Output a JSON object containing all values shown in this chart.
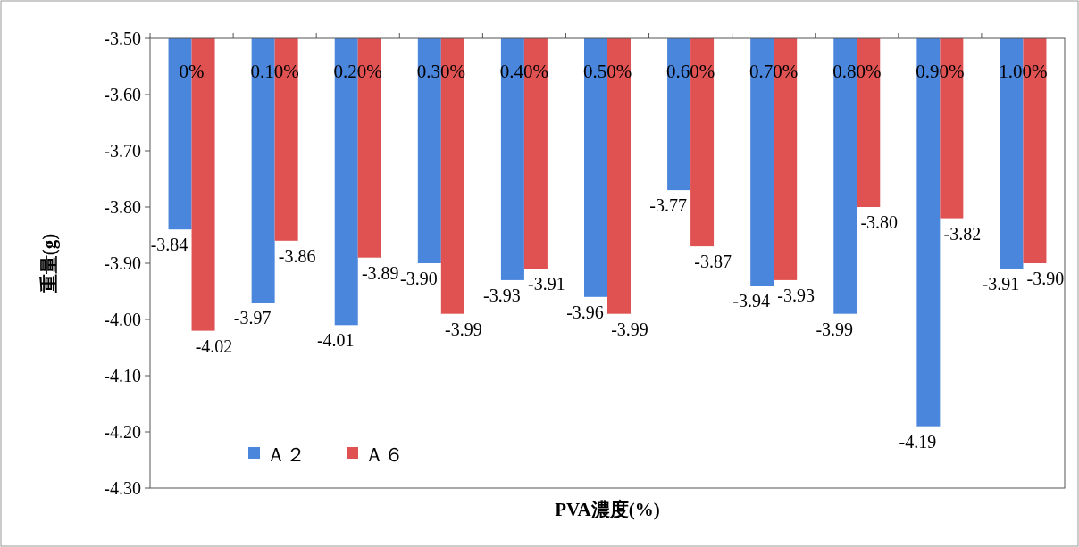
{
  "chart_data": {
    "type": "bar",
    "xlabel": "PVA濃度(%)",
    "ylabel": "重量(g)",
    "categories": [
      "0%",
      "0.10%",
      "0.20%",
      "0.30%",
      "0.40%",
      "0.50%",
      "0.60%",
      "0.70%",
      "0.80%",
      "0.90%",
      "1.00%"
    ],
    "ylim": [
      -4.3,
      -3.5
    ],
    "yticks": [
      {
        "value": -3.5,
        "label": "-3.50"
      },
      {
        "value": -3.6,
        "label": "-3.60"
      },
      {
        "value": -3.7,
        "label": "-3.70"
      },
      {
        "value": -3.8,
        "label": "-3.80"
      },
      {
        "value": -3.9,
        "label": "-3.90"
      },
      {
        "value": -4.0,
        "label": "-4.00"
      },
      {
        "value": -4.1,
        "label": "-4.10"
      },
      {
        "value": -4.2,
        "label": "-4.20"
      },
      {
        "value": -4.3,
        "label": "-4.30"
      }
    ],
    "legend": "bottom left",
    "series": [
      {
        "name": "Ａ２",
        "color": "#4a86dc",
        "values": [
          -3.84,
          -3.97,
          -4.01,
          -3.9,
          -3.93,
          -3.96,
          -3.77,
          -3.94,
          -3.99,
          -4.19,
          -3.91
        ],
        "value_labels": [
          "-3.84",
          "-3.97",
          "-4.01",
          "-3.90",
          "-3.93",
          "-3.96",
          "-3.77",
          "-3.94",
          "-3.99",
          "-4.19",
          "-3.91"
        ]
      },
      {
        "name": "Ａ６",
        "color": "#e05252",
        "values": [
          -4.02,
          -3.86,
          -3.89,
          -3.99,
          -3.91,
          -3.99,
          -3.87,
          -3.93,
          -3.8,
          -3.82,
          -3.9
        ],
        "value_labels": [
          "-4.02",
          "-3.86",
          "-3.89",
          "-3.99",
          "-3.91",
          "-3.99",
          "-3.87",
          "-3.93",
          "-3.80",
          "-3.82",
          "-3.90"
        ]
      }
    ]
  }
}
